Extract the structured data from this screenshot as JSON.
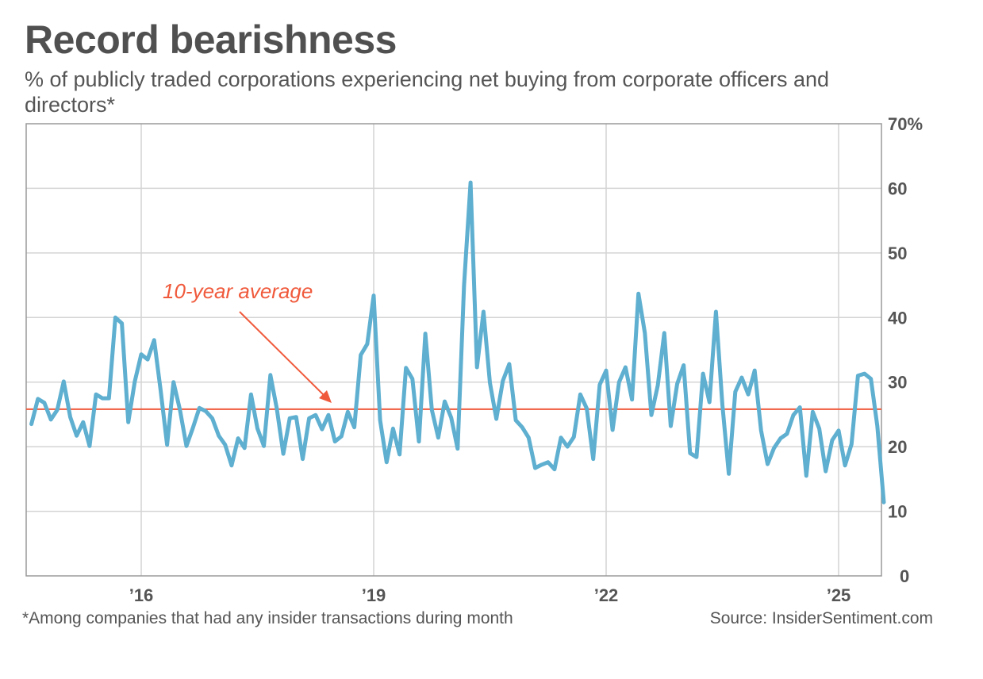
{
  "title": "Record bearishness",
  "subtitle": "% of publicly traded corporations experiencing net buying from corporate officers and directors*",
  "footnote": "*Among companies that had any insider transactions during month",
  "source": "Source: InsiderSentiment.com",
  "colors": {
    "series": "#5eafd0",
    "average_line": "#f05a3c",
    "annotation": "#f05a3c",
    "grid": "#d4d4d4",
    "axis": "#9a9a9a"
  },
  "chart_data": {
    "type": "line",
    "title": "Record bearishness",
    "subtitle": "% of publicly traded corporations experiencing net buying from corporate officers and directors*",
    "xlabel": "",
    "ylabel": "",
    "x_start": "2014-08",
    "x_end": "2025-08",
    "x_frequency": "monthly",
    "ylim": [
      0,
      70
    ],
    "y_ticks": [
      0,
      10,
      20,
      30,
      40,
      50,
      60,
      70
    ],
    "y_tick_labels": [
      "0",
      "10",
      "20",
      "30",
      "40",
      "50",
      "60",
      "70%"
    ],
    "y_axis_side": "right",
    "x_ticks": [
      {
        "label": "’16",
        "date": "2016-01"
      },
      {
        "label": "’19",
        "date": "2019-01"
      },
      {
        "label": "’22",
        "date": "2022-01"
      },
      {
        "label": "’25",
        "date": "2025-01"
      }
    ],
    "grid": true,
    "series": [
      {
        "name": "% with net insider buying",
        "values": [
          23.5,
          27.4,
          26.8,
          24.2,
          25.7,
          30.1,
          24.6,
          21.7,
          23.8,
          20.1,
          28.1,
          27.5,
          27.5,
          40.0,
          39.1,
          23.8,
          30.1,
          34.3,
          33.5,
          36.5,
          28.8,
          20.3,
          30.0,
          25.7,
          20.1,
          22.9,
          26.0,
          25.5,
          24.4,
          21.7,
          20.3,
          17.1,
          21.3,
          19.8,
          28.1,
          22.8,
          20.1,
          31.1,
          25.9,
          18.9,
          24.4,
          24.6,
          18.1,
          24.4,
          24.9,
          22.7,
          24.9,
          20.8,
          21.6,
          25.4,
          23.0,
          34.2,
          35.9,
          43.4,
          24.1,
          17.6,
          22.8,
          18.8,
          32.2,
          30.5,
          20.8,
          37.5,
          25.7,
          21.4,
          27.0,
          24.5,
          19.7,
          45.0,
          60.9,
          32.3,
          40.9,
          29.9,
          24.3,
          30.2,
          32.8,
          24.1,
          23.0,
          21.4,
          16.7,
          17.2,
          17.6,
          16.5,
          21.4,
          20.0,
          21.5,
          28.1,
          25.9,
          18.1,
          29.6,
          31.8,
          22.6,
          30.0,
          32.3,
          27.3,
          43.7,
          37.6,
          24.9,
          29.5,
          37.6,
          23.2,
          29.7,
          32.6,
          19.0,
          18.4,
          31.3,
          26.9,
          40.9,
          26.5,
          15.8,
          28.5,
          30.7,
          28.1,
          31.8,
          22.5,
          17.3,
          19.8,
          21.3,
          22.0,
          24.9,
          26.1,
          15.5,
          25.4,
          22.8,
          16.2,
          21.0,
          22.5,
          17.1,
          20.4,
          31.0,
          31.3,
          30.5,
          23.2,
          11.4
        ]
      }
    ],
    "reference_lines": [
      {
        "name": "10-year average",
        "value": 25.8
      }
    ],
    "annotations": [
      {
        "text": "10-year average",
        "points_to": "10-year average line, late 2018"
      }
    ],
    "legend": "none"
  }
}
